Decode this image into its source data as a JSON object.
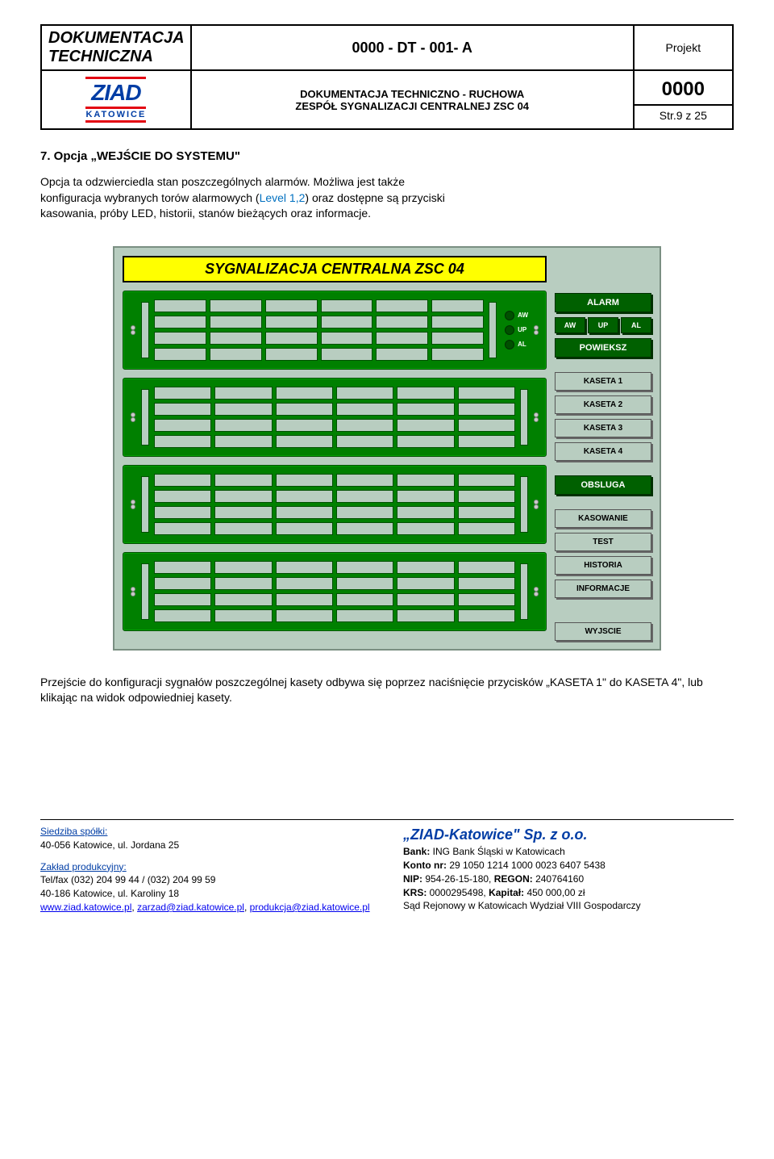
{
  "header": {
    "title": "DOKUMENTACJA TECHNICZNA",
    "code": "0000 - DT - 001- A",
    "projekt": "Projekt",
    "num": "0000",
    "str": "Str.9 z 25",
    "sub1": "DOKUMENTACJA TECHNICZNO - RUCHOWA",
    "sub2": "ZESPÓŁ SYGNALIZACJI CENTRALNEJ ZSC 04",
    "logo_main": "ZIAD",
    "logo_sub": "KATOWICE"
  },
  "section": {
    "title": "7.  Opcja „WEJŚCIE DO SYSTEMU\"",
    "p1": "Opcja ta odzwierciedla stan poszczególnych alarmów. Możliwa jest także",
    "p2a": "konfiguracja wybranych torów alarmowych (",
    "level": "Level 1,2",
    "p2b": ") oraz dostępne są przyciski",
    "p3": "kasowania, próby LED, historii, stanów bieżących oraz informacje.",
    "after_img": "Przejście do konfiguracji sygnałów poszczególnej kasety odbywa się poprzez naciśnięcie    przycisków „KASETA 1\" do KASETA 4\", lub klikając na widok odpowiedniej kasety."
  },
  "hmi": {
    "title": "SYGNALIZACJA  CENTRALNA  ZSC  04",
    "leds": [
      "AW",
      "UP",
      "AL"
    ],
    "right": {
      "alarm": "ALARM",
      "aw": "AW",
      "up": "UP",
      "al": "AL",
      "powieksz": "POWIEKSZ",
      "kaseta": [
        "KASETA 1",
        "KASETA 2",
        "KASETA 3",
        "KASETA 4"
      ],
      "obsluga": "OBSLUGA",
      "kasowanie": "KASOWANIE",
      "test": "TEST",
      "historia": "HISTORIA",
      "informacje": "INFORMACJE",
      "wyjscie": "WYJSCIE"
    },
    "colors": {
      "bg": "#b8cdc0",
      "green": "#008000",
      "dark_green": "#005000",
      "yellow": "#ffff00"
    }
  },
  "footer": {
    "left": {
      "siedziba_h": "Siedziba spółki:",
      "siedziba": "40-056 Katowice, ul. Jordana 25",
      "zaklad_h": "Zakład produkcyjny:",
      "tel": "Tel/fax (032) 204 99 44 / (032) 204 99 59",
      "addr": "40-186 Katowice, ul. Karoliny 18",
      "link1": "www.ziad.katowice.pl",
      "link2": "zarzad@ziad.katowice.pl",
      "link3": "produkcja@ziad.katowice.pl"
    },
    "right": {
      "company": "„ZIAD-Katowice\" Sp. z o.o.",
      "bank_h": "Bank:",
      "bank": " ING Bank Śląski w Katowicach",
      "konto_h": "Konto nr:",
      "konto": " 29 1050 1214 1000 0023 6407 5438",
      "nip_h": "NIP:",
      "nip": " 954-26-15-180, ",
      "regon_h": "REGON:",
      "regon": " 240764160",
      "krs_h": "KRS:",
      "krs": " 0000295498, ",
      "kapital_h": "Kapitał:",
      "kapital": " 450 000,00 zł",
      "sad": "Sąd Rejonowy w Katowicach Wydział VIII Gospodarczy"
    }
  }
}
